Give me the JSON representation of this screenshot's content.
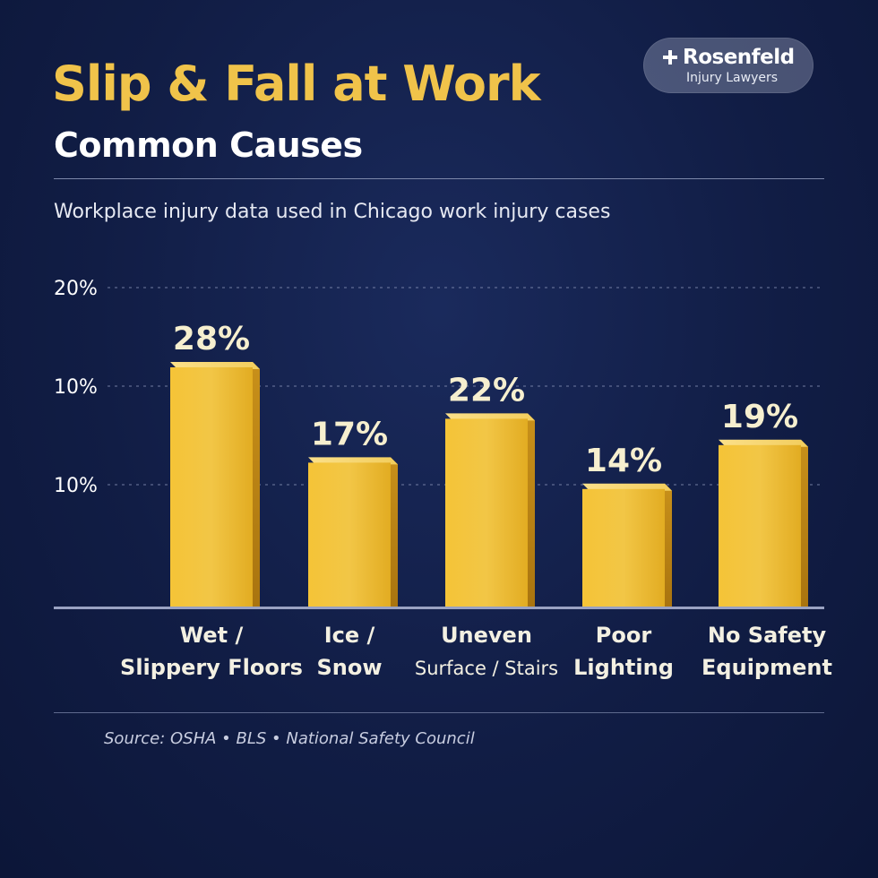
{
  "header": {
    "title": "Slip & Fall at Work",
    "subtitle": "Common Causes",
    "tagline": "Workplace injury data used in Chicago work injury cases"
  },
  "brand": {
    "name": "Rosenfeld",
    "tagline": "Injury Lawyers"
  },
  "footer": {
    "source": "Source: OSHA • BLS • National Safety Council"
  },
  "colors": {
    "background": "#111d45",
    "title": "#f0c34a",
    "bar": "#e8b52a",
    "bar_light": "#f7d870",
    "label": "#f6efcf"
  },
  "chart_data": {
    "type": "bar",
    "title": "Slip & Fall at Work",
    "categories": [
      [
        "Wet /",
        "Slippery Floors"
      ],
      [
        "Ice /",
        "Snow"
      ],
      [
        "Uneven",
        "Surface / Stairs"
      ],
      [
        "Poor",
        "Lighting"
      ],
      [
        "No Safety",
        "Equipment"
      ]
    ],
    "values": [
      28,
      17,
      22,
      14,
      19
    ],
    "value_labels": [
      "28%",
      "17%",
      "22%",
      "14%",
      "19%"
    ],
    "y_tick_labels": [
      "20%",
      "10%",
      "10%"
    ],
    "grid": true,
    "legend": "none"
  }
}
